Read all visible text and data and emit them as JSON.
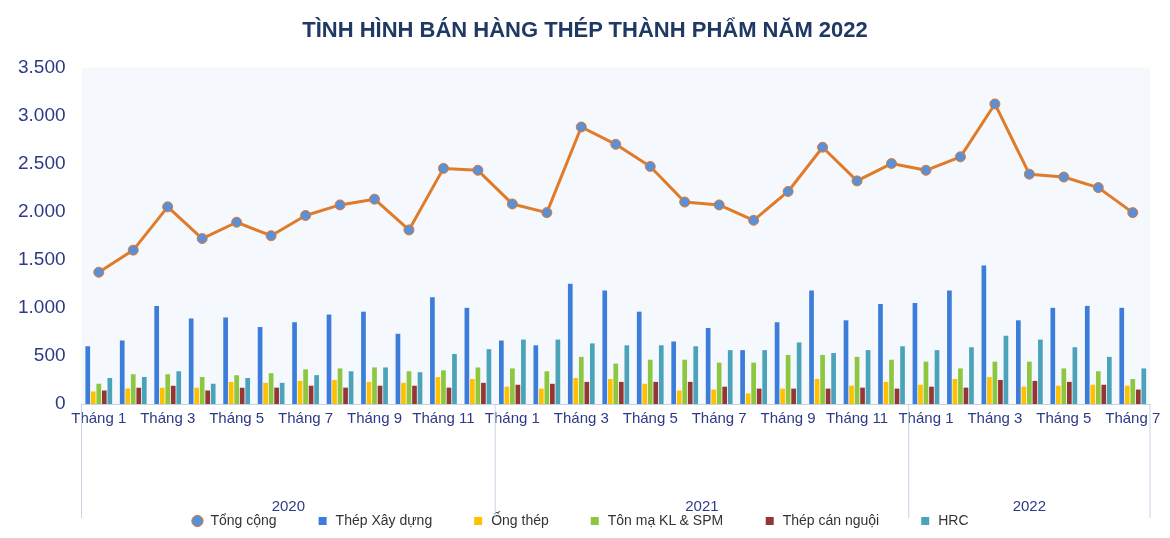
{
  "chart_data": {
    "type": "bar",
    "title": "TÌNH HÌNH BÁN HÀNG THÉP THÀNH PHẨM NĂM 2022",
    "categories": [
      "Tháng 1",
      null,
      "Tháng 3",
      null,
      "Tháng 5",
      null,
      "Tháng 7",
      null,
      "Tháng 9",
      null,
      "Tháng 11",
      null,
      "Tháng 1",
      null,
      "Tháng 3",
      null,
      "Tháng 5",
      null,
      "Tháng 7",
      null,
      "Tháng 9",
      null,
      "Tháng 11",
      null,
      "Tháng 1",
      null,
      "Tháng 3",
      null,
      "Tháng 5",
      null,
      "Tháng 7"
    ],
    "series": [
      {
        "name": "Thép Xây dựng",
        "color": "#3b7dd8",
        "values": [
          600,
          660,
          1020,
          890,
          900,
          800,
          850,
          930,
          960,
          730,
          1110,
          1000,
          660,
          610,
          1250,
          1180,
          960,
          650,
          790,
          560,
          850,
          1180,
          870,
          1040,
          1050,
          1180,
          1440,
          870,
          1000,
          1020,
          1000
        ]
      },
      {
        "name": "Ống thép",
        "color": "#ffc000",
        "values": [
          130,
          160,
          170,
          170,
          230,
          220,
          240,
          250,
          230,
          220,
          280,
          260,
          180,
          160,
          270,
          260,
          210,
          140,
          150,
          110,
          160,
          260,
          190,
          230,
          200,
          260,
          280,
          180,
          190,
          200,
          190
        ]
      },
      {
        "name": "Tôn mạ KL & SPM",
        "color": "#8dc63f",
        "values": [
          210,
          310,
          310,
          280,
          300,
          320,
          360,
          370,
          380,
          340,
          350,
          380,
          370,
          340,
          490,
          420,
          460,
          460,
          430,
          430,
          510,
          510,
          490,
          460,
          440,
          370,
          440,
          440,
          370,
          340,
          260
        ]
      },
      {
        "name": "Thép cán nguội",
        "color": "#943634",
        "values": [
          140,
          170,
          190,
          140,
          170,
          170,
          190,
          170,
          190,
          190,
          170,
          220,
          200,
          210,
          230,
          230,
          230,
          230,
          180,
          160,
          160,
          160,
          170,
          160,
          180,
          170,
          250,
          240,
          230,
          200,
          150
        ]
      },
      {
        "name": "HRC",
        "color": "#4aa3b8",
        "values": [
          270,
          280,
          340,
          210,
          270,
          220,
          300,
          340,
          380,
          330,
          520,
          570,
          670,
          670,
          630,
          610,
          610,
          600,
          560,
          560,
          640,
          530,
          560,
          600,
          560,
          590,
          710,
          670,
          590,
          490,
          370
        ]
      },
      {
        "name": "Tổng cộng",
        "type": "line",
        "color": "#e07b2a",
        "marker": "circle",
        "values": [
          1370,
          1600,
          2050,
          1720,
          1890,
          1750,
          1960,
          2070,
          2130,
          1810,
          2450,
          2430,
          2080,
          1990,
          2880,
          2700,
          2470,
          2100,
          2070,
          1910,
          2210,
          2670,
          2320,
          2500,
          2430,
          2570,
          3120,
          2390,
          2360,
          2250,
          1990
        ]
      }
    ],
    "ylim": [
      0,
      3500
    ],
    "yticks": [
      0,
      {
        "value": 500,
        "label": "500"
      },
      {
        "value": 1000,
        "label": "1.000"
      },
      {
        "value": 1500,
        "label": "1.500"
      },
      {
        "value": 2000,
        "label": "2.000"
      },
      {
        "value": 2500,
        "label": "2.500"
      },
      {
        "value": 3000,
        "label": "3.000"
      },
      {
        "value": 3500,
        "label": "3.500"
      }
    ],
    "annotations": [
      "2020",
      "2021",
      "2022"
    ],
    "legend": "bottom",
    "grid": false
  }
}
